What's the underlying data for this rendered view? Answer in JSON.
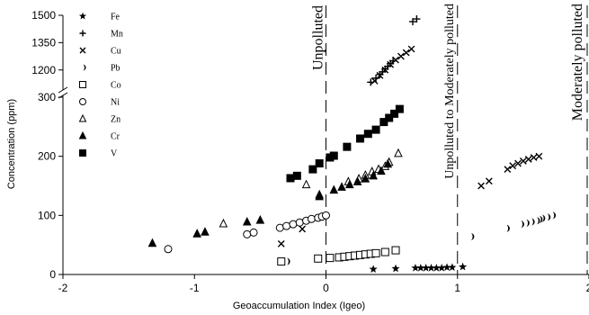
{
  "chart_data": {
    "type": "scatter",
    "xlabel": "Geoaccumulation Index (Igeo)",
    "ylabel": "Concentration (ppm)",
    "xlim": [
      -2,
      2
    ],
    "x_ticks": [
      "-2",
      "-1",
      "0",
      "1",
      "2"
    ],
    "y_axis_break": true,
    "y_ticks_lower": [
      "0",
      "100",
      "200",
      "300"
    ],
    "y_ticks_upper": [
      "1200",
      "1350",
      "1500"
    ],
    "ylim_lower": [
      0,
      300
    ],
    "ylim_upper": [
      1100,
      1500
    ],
    "grid": false,
    "legend_position": "top-left",
    "zones": [
      {
        "x": 0,
        "label": "Unpolluted"
      },
      {
        "x": 1,
        "label": "Unpolluted to Moderately polluted"
      },
      {
        "x": 2,
        "label": "Moderately polluted"
      }
    ],
    "series": [
      {
        "name": "Fe",
        "marker": "star",
        "filled": true,
        "x": [
          0.36,
          0.53,
          0.68,
          0.72,
          0.76,
          0.8,
          0.84,
          0.88,
          0.92,
          0.96,
          1.04
        ],
        "y": [
          9,
          10,
          11,
          11,
          11,
          11,
          11,
          11,
          12,
          12,
          13
        ]
      },
      {
        "name": "Mn",
        "marker": "plus",
        "filled": false,
        "x": [
          0.34,
          0.38,
          0.41,
          0.43,
          0.45,
          0.47,
          0.49,
          0.51,
          0.66,
          0.69
        ],
        "y": [
          1133,
          1155,
          1175,
          1190,
          1205,
          1220,
          1235,
          1250,
          1465,
          1480
        ]
      },
      {
        "name": "Cu",
        "marker": "x",
        "filled": false,
        "x": [
          -0.34,
          0.37,
          0.41,
          0.45,
          0.49,
          0.53,
          0.57,
          0.61,
          0.65,
          -0.18,
          1.18,
          1.24,
          1.38,
          1.42,
          1.46,
          1.5,
          1.54,
          1.58,
          1.62
        ],
        "y": [
          52,
          1140,
          1170,
          1200,
          1230,
          1255,
          1275,
          1295,
          1315,
          77,
          150,
          158,
          178,
          184,
          188,
          192,
          195,
          198,
          200
        ]
      },
      {
        "name": "Pb",
        "marker": "crescent",
        "filled": true,
        "x": [
          -0.3,
          1.1,
          1.37,
          1.48,
          1.52,
          1.56,
          1.6,
          1.62,
          1.64,
          1.68,
          1.72
        ],
        "y": [
          22,
          64,
          78,
          85,
          87,
          89,
          91,
          93,
          95,
          97,
          100
        ]
      },
      {
        "name": "Co",
        "marker": "square",
        "filled": false,
        "x": [
          -0.34,
          -0.06,
          0.03,
          0.1,
          0.14,
          0.18,
          0.22,
          0.26,
          0.3,
          0.34,
          0.38,
          0.45,
          0.53
        ],
        "y": [
          22,
          27,
          28,
          29,
          30,
          31,
          32,
          33,
          34,
          35,
          36,
          38,
          41
        ]
      },
      {
        "name": "Ni",
        "marker": "circle",
        "filled": false,
        "x": [
          -1.2,
          -0.6,
          -0.55,
          -0.35,
          -0.3,
          -0.25,
          -0.2,
          -0.15,
          -0.11,
          -0.06,
          -0.03,
          0.0
        ],
        "y": [
          43,
          68,
          71,
          79,
          82,
          85,
          88,
          91,
          94,
          96,
          98,
          100
        ]
      },
      {
        "name": "Zn",
        "marker": "triangle",
        "filled": false,
        "x": [
          -0.78,
          -0.05,
          -0.15,
          0.17,
          0.25,
          0.3,
          0.35,
          0.4,
          0.45,
          0.48,
          0.55
        ],
        "y": [
          86,
          135,
          152,
          157,
          162,
          168,
          174,
          178,
          183,
          190,
          205
        ]
      },
      {
        "name": "Cr",
        "marker": "triangle",
        "filled": true,
        "x": [
          -1.32,
          -0.98,
          -0.92,
          -0.6,
          -0.5,
          -0.05,
          0.06,
          0.12,
          0.18,
          0.24,
          0.3,
          0.36,
          0.42,
          0.47
        ],
        "y": [
          53,
          69,
          72,
          89,
          92,
          132,
          143,
          148,
          152,
          157,
          162,
          167,
          175,
          187
        ]
      },
      {
        "name": "V",
        "marker": "square",
        "filled": true,
        "x": [
          -0.27,
          -0.22,
          -0.1,
          -0.05,
          0.03,
          0.06,
          0.16,
          0.26,
          0.32,
          0.38,
          0.44,
          0.48,
          0.52,
          0.56
        ],
        "y": [
          163,
          167,
          178,
          188,
          198,
          201,
          216,
          230,
          238,
          245,
          258,
          265,
          272,
          280
        ]
      }
    ]
  }
}
